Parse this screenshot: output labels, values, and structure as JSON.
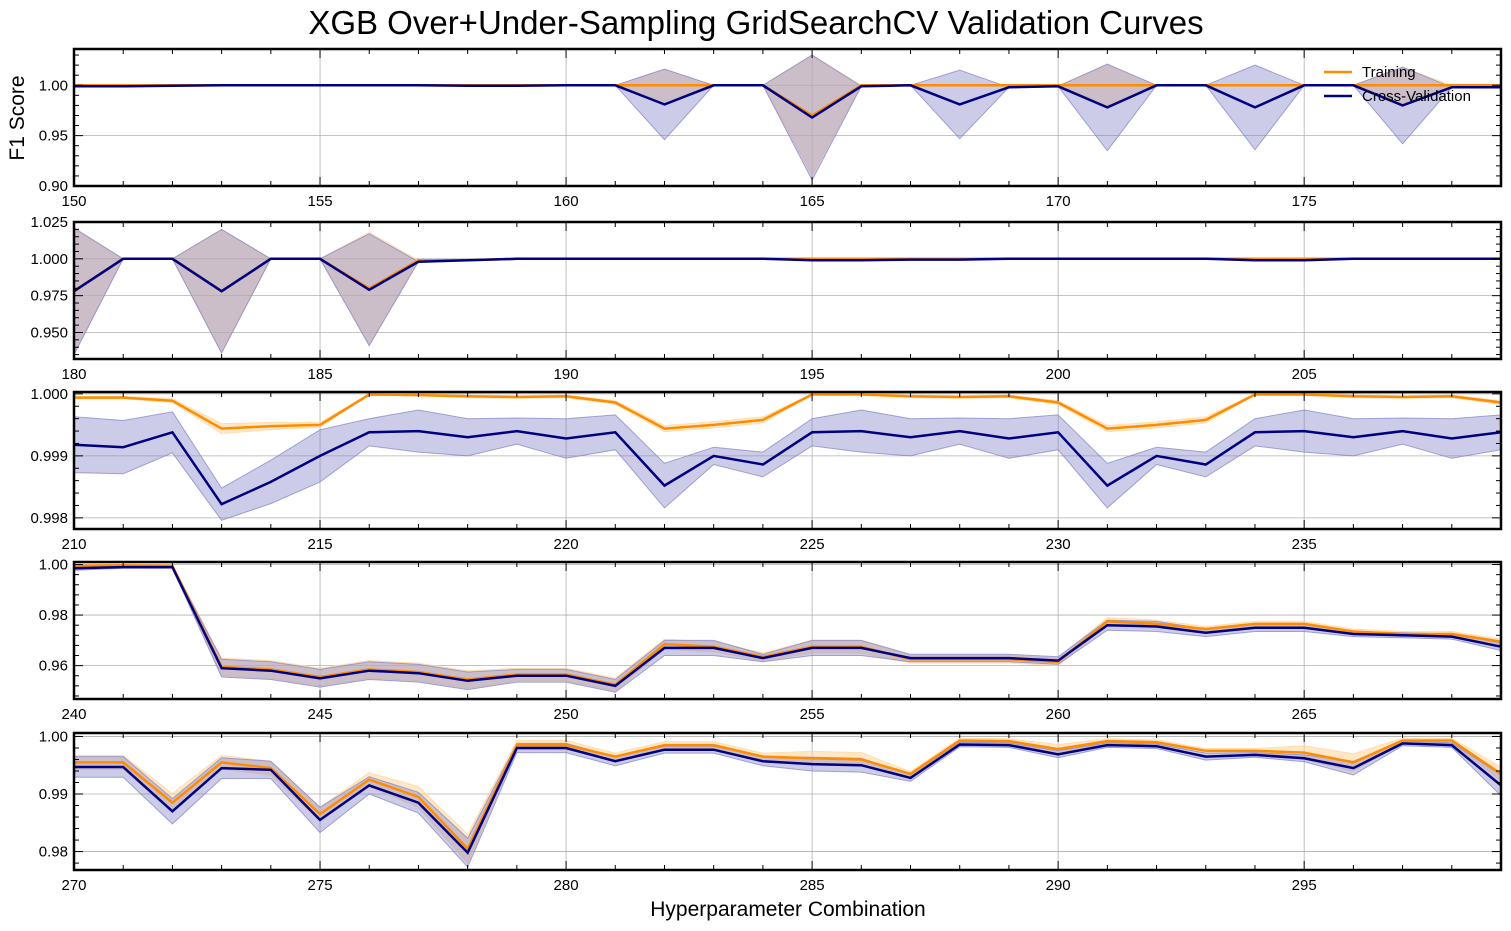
{
  "figure": {
    "title": "XGB Over+Under-Sampling GridSearchCV Validation Curves",
    "ylabel": "F1 Score",
    "xlabel": "Hyperparameter Combination"
  },
  "colors": {
    "training": "#ff8c00",
    "training_band": "#ffd59a",
    "cv": "#000080",
    "cv_band": "#8080c8"
  },
  "legend": {
    "placement": "top-right",
    "entries": [
      "Training",
      "Cross-Validation"
    ]
  },
  "chart_data": [
    {
      "type": "line",
      "xlim": [
        150,
        179
      ],
      "ylim": [
        0.9,
        1.036
      ],
      "xticks": [
        150,
        155,
        160,
        165,
        170,
        175
      ],
      "yticks": [
        0.9,
        0.95,
        1.0
      ],
      "ytick_labels": [
        "0.90",
        "0.95",
        "1.00"
      ],
      "x": [
        150,
        151,
        152,
        153,
        154,
        155,
        156,
        157,
        158,
        159,
        160,
        161,
        162,
        163,
        164,
        165,
        166,
        167,
        168,
        169,
        170,
        171,
        172,
        173,
        174,
        175,
        176,
        177,
        178,
        179
      ],
      "series": [
        {
          "name": "Training",
          "values": [
            1.0,
            1.0,
            1.0,
            1.0,
            1.0,
            1.0,
            1.0,
            1.0,
            1.0,
            1.0,
            1.0,
            1.0,
            1.0,
            1.0,
            1.0,
            0.97,
            1.0,
            1.0,
            1.0,
            1.0,
            1.0,
            1.0,
            1.0,
            1.0,
            1.0,
            1.0,
            1.0,
            1.0,
            1.0,
            1.0
          ],
          "band": [
            0,
            0,
            0,
            0,
            0,
            0,
            0,
            0,
            0,
            0,
            0,
            0,
            0.016,
            0,
            0,
            0.059,
            0,
            0,
            0,
            0,
            0,
            0.02,
            0,
            0,
            0,
            0,
            0,
            0.018,
            0,
            0
          ]
        },
        {
          "name": "Cross-Validation",
          "values": [
            0.999,
            0.999,
            0.9995,
            1.0,
            1.0,
            1.0,
            1.0,
            1.0,
            0.9995,
            0.9995,
            1.0,
            1.0,
            0.981,
            1.0,
            1.0,
            0.968,
            0.999,
            1.0,
            0.981,
            0.998,
            0.999,
            0.978,
            1.0,
            1.0,
            0.978,
            1.0,
            1.0,
            0.98,
            0.998,
            0.998
          ],
          "band": [
            0,
            0,
            0,
            0,
            0,
            0,
            0,
            0,
            0,
            0,
            0,
            0,
            0.035,
            0,
            0,
            0.062,
            0,
            0,
            0.034,
            0,
            0,
            0.043,
            0,
            0,
            0.042,
            0,
            0,
            0.038,
            0,
            0
          ]
        }
      ]
    },
    {
      "type": "line",
      "xlim": [
        180,
        209
      ],
      "ylim": [
        0.932,
        1.025
      ],
      "xticks": [
        180,
        185,
        190,
        195,
        200,
        205
      ],
      "yticks": [
        0.95,
        0.975,
        1.0,
        1.025
      ],
      "ytick_labels": [
        "0.950",
        "0.975",
        "1.000",
        "1.025"
      ],
      "x": [
        180,
        181,
        182,
        183,
        184,
        185,
        186,
        187,
        188,
        189,
        190,
        191,
        192,
        193,
        194,
        195,
        196,
        197,
        198,
        199,
        200,
        201,
        202,
        203,
        204,
        205,
        206,
        207,
        208,
        209
      ],
      "series": [
        {
          "name": "Training",
          "values": [
            0.978,
            1.0,
            1.0,
            0.978,
            1.0,
            1.0,
            0.98,
            0.999,
            0.999,
            1.0,
            1.0,
            1.0,
            1.0,
            1.0,
            1.0,
            1.0,
            1.0,
            1.0,
            1.0,
            1.0,
            1.0,
            1.0,
            1.0,
            1.0,
            1.0,
            1.0,
            1.0,
            1.0,
            1.0,
            1.0
          ],
          "band": [
            0.042,
            0,
            0,
            0.042,
            0,
            0,
            0.038,
            0,
            0,
            0,
            0,
            0,
            0,
            0,
            0,
            0,
            0,
            0,
            0,
            0,
            0,
            0,
            0,
            0,
            0,
            0,
            0,
            0,
            0,
            0
          ]
        },
        {
          "name": "Cross-Validation",
          "values": [
            0.978,
            1.0,
            1.0,
            0.978,
            1.0,
            1.0,
            0.979,
            0.998,
            0.999,
            1.0,
            1.0,
            1.0,
            1.0,
            1.0,
            1.0,
            0.999,
            0.999,
            0.9995,
            0.9995,
            1.0,
            1.0,
            1.0,
            1.0,
            1.0,
            0.999,
            0.999,
            1.0,
            1.0,
            1.0,
            1.0
          ],
          "band": [
            0.043,
            0,
            0,
            0.042,
            0,
            0,
            0.038,
            0,
            0,
            0,
            0,
            0,
            0,
            0,
            0,
            0,
            0,
            0,
            0,
            0,
            0,
            0,
            0,
            0,
            0,
            0,
            0,
            0,
            0,
            0
          ]
        }
      ]
    },
    {
      "type": "line",
      "xlim": [
        210,
        239
      ],
      "ylim": [
        0.99782,
        1.00003
      ],
      "xticks": [
        210,
        215,
        220,
        225,
        230,
        235
      ],
      "yticks": [
        0.998,
        0.999,
        1.0
      ],
      "ytick_labels": [
        "0.998",
        "0.999",
        "1.000"
      ],
      "x": [
        210,
        211,
        212,
        213,
        214,
        215,
        216,
        217,
        218,
        219,
        220,
        221,
        222,
        223,
        224,
        225,
        226,
        227,
        228,
        229,
        230,
        231,
        232,
        233,
        234,
        235,
        236,
        237,
        238,
        239
      ],
      "series": [
        {
          "name": "Training",
          "values": [
            0.99994,
            0.99994,
            0.99989,
            0.99944,
            0.99948,
            0.9995,
            0.99999,
            0.99998,
            0.99996,
            0.99995,
            0.99996,
            0.99986,
            0.99944,
            0.9995,
            0.99958,
            0.99999,
            0.99999,
            0.99996,
            0.99995,
            0.99996,
            0.99986,
            0.99944,
            0.9995,
            0.99958,
            0.99999,
            0.99999,
            0.99996,
            0.99995,
            0.99996,
            0.99986
          ],
          "band": [
            2e-05,
            2e-05,
            3e-05,
            8e-05,
            6e-05,
            4e-05,
            1e-05,
            1e-05,
            2e-05,
            2e-05,
            2e-05,
            3e-05,
            5e-05,
            5e-05,
            5e-05,
            1e-05,
            1e-05,
            2e-05,
            2e-05,
            2e-05,
            3e-05,
            5e-05,
            5e-05,
            5e-05,
            1e-05,
            1e-05,
            2e-05,
            2e-05,
            2e-05,
            3e-05
          ]
        },
        {
          "name": "Cross-Validation",
          "values": [
            0.99918,
            0.99914,
            0.99938,
            0.99822,
            0.99858,
            0.999,
            0.99938,
            0.9994,
            0.9993,
            0.9994,
            0.99928,
            0.99938,
            0.99852,
            0.999,
            0.99886,
            0.99938,
            0.9994,
            0.9993,
            0.9994,
            0.99928,
            0.99938,
            0.99852,
            0.999,
            0.99886,
            0.99938,
            0.9994,
            0.9993,
            0.9994,
            0.99928,
            0.99938
          ],
          "band": [
            0.00045,
            0.00043,
            0.00033,
            0.00026,
            0.00035,
            0.00042,
            0.00022,
            0.00034,
            0.0003,
            0.00021,
            0.00032,
            0.00028,
            0.00036,
            0.00014,
            0.0002,
            0.00022,
            0.00034,
            0.0003,
            0.00021,
            0.00032,
            0.00028,
            0.00036,
            0.00014,
            0.0002,
            0.00022,
            0.00034,
            0.0003,
            0.00021,
            0.00032,
            0.00028
          ]
        }
      ]
    },
    {
      "type": "line",
      "xlim": [
        240,
        269
      ],
      "ylim": [
        0.9468,
        1.001
      ],
      "xticks": [
        240,
        245,
        250,
        255,
        260,
        265
      ],
      "yticks": [
        0.96,
        0.98,
        1.0
      ],
      "ytick_labels": [
        "0.96",
        "0.98",
        "1.00"
      ],
      "x": [
        240,
        241,
        242,
        243,
        244,
        245,
        246,
        247,
        248,
        249,
        250,
        251,
        252,
        253,
        254,
        255,
        256,
        257,
        258,
        259,
        260,
        261,
        262,
        263,
        264,
        265,
        266,
        267,
        268,
        269
      ],
      "series": [
        {
          "name": "Training",
          "values": [
            0.9995,
            0.9997,
            0.9995,
            0.9595,
            0.9585,
            0.9555,
            0.9585,
            0.9575,
            0.9545,
            0.9565,
            0.9565,
            0.9525,
            0.9685,
            0.9675,
            0.9635,
            0.9675,
            0.9675,
            0.9625,
            0.9625,
            0.9625,
            0.9615,
            0.9775,
            0.9765,
            0.9745,
            0.9765,
            0.9765,
            0.9735,
            0.9725,
            0.9725,
            0.9695
          ],
          "band": [
            0.0005,
            0.0003,
            0.0005,
            0.0035,
            0.0035,
            0.0035,
            0.0035,
            0.0035,
            0.0035,
            0.0025,
            0.0025,
            0.0025,
            0.002,
            0.002,
            0.0015,
            0.0025,
            0.0025,
            0.0015,
            0.0015,
            0.0015,
            0.0015,
            0.0015,
            0.0015,
            0.001,
            0.001,
            0.001,
            0.001,
            0.001,
            0.001,
            0.001
          ]
        },
        {
          "name": "Cross-Validation",
          "values": [
            0.9985,
            0.999,
            0.999,
            0.959,
            0.958,
            0.955,
            0.958,
            0.957,
            0.954,
            0.956,
            0.956,
            0.952,
            0.967,
            0.967,
            0.963,
            0.967,
            0.967,
            0.963,
            0.963,
            0.963,
            0.962,
            0.976,
            0.9755,
            0.973,
            0.975,
            0.975,
            0.9725,
            0.972,
            0.9715,
            0.9675
          ],
          "band": [
            0.0008,
            0.0005,
            0.0005,
            0.0035,
            0.0035,
            0.0035,
            0.0035,
            0.0035,
            0.0035,
            0.0025,
            0.0025,
            0.0025,
            0.003,
            0.003,
            0.0015,
            0.003,
            0.003,
            0.0015,
            0.0015,
            0.0015,
            0.0015,
            0.002,
            0.002,
            0.0015,
            0.0015,
            0.0015,
            0.001,
            0.001,
            0.001,
            0.0015
          ]
        }
      ]
    },
    {
      "type": "line",
      "xlim": [
        270,
        299
      ],
      "ylim": [
        0.9768,
        1.0006
      ],
      "xticks": [
        270,
        275,
        280,
        285,
        290,
        295
      ],
      "yticks": [
        0.98,
        0.99,
        1.0
      ],
      "ytick_labels": [
        "0.98",
        "0.99",
        "1.00"
      ],
      "x": [
        270,
        271,
        272,
        273,
        274,
        275,
        276,
        277,
        278,
        279,
        280,
        281,
        282,
        283,
        284,
        285,
        286,
        287,
        288,
        289,
        290,
        291,
        292,
        293,
        294,
        295,
        296,
        297,
        298,
        299
      ],
      "series": [
        {
          "name": "Training",
          "values": [
            0.9955,
            0.9955,
            0.9885,
            0.9955,
            0.9945,
            0.9865,
            0.9925,
            0.9895,
            0.9805,
            0.9985,
            0.9985,
            0.9965,
            0.9985,
            0.9985,
            0.9965,
            0.9962,
            0.996,
            0.9935,
            0.9993,
            0.9992,
            0.9978,
            0.9992,
            0.999,
            0.9975,
            0.9975,
            0.9972,
            0.9955,
            0.9993,
            0.9993,
            0.9935
          ],
          "band": [
            0.0012,
            0.0012,
            0.0016,
            0.0012,
            0.0012,
            0.0012,
            0.0012,
            0.0018,
            0.0025,
            0.0008,
            0.0008,
            0.0006,
            0.0006,
            0.0006,
            0.0006,
            0.0012,
            0.0012,
            0.0004,
            0.0004,
            0.0004,
            0.0008,
            0.0004,
            0.0004,
            0.0004,
            0.0004,
            0.0012,
            0.0015,
            0.0004,
            0.0004,
            0.0012
          ]
        },
        {
          "name": "Cross-Validation",
          "values": [
            0.9947,
            0.9947,
            0.987,
            0.9945,
            0.9942,
            0.9855,
            0.9915,
            0.9885,
            0.9798,
            0.998,
            0.998,
            0.9957,
            0.9977,
            0.9977,
            0.9957,
            0.9952,
            0.995,
            0.9928,
            0.9986,
            0.9985,
            0.9969,
            0.9985,
            0.9983,
            0.9965,
            0.9968,
            0.9962,
            0.9945,
            0.9988,
            0.9985,
            0.9915
          ],
          "band": [
            0.0018,
            0.0018,
            0.0022,
            0.0018,
            0.0015,
            0.0022,
            0.0015,
            0.0018,
            0.0025,
            0.0008,
            0.0008,
            0.0008,
            0.0006,
            0.0006,
            0.0008,
            0.0012,
            0.0012,
            0.0006,
            0.0004,
            0.0004,
            0.0006,
            0.0004,
            0.0004,
            0.0006,
            0.0004,
            0.0006,
            0.0012,
            0.0004,
            0.0004,
            0.0018
          ]
        }
      ]
    }
  ]
}
